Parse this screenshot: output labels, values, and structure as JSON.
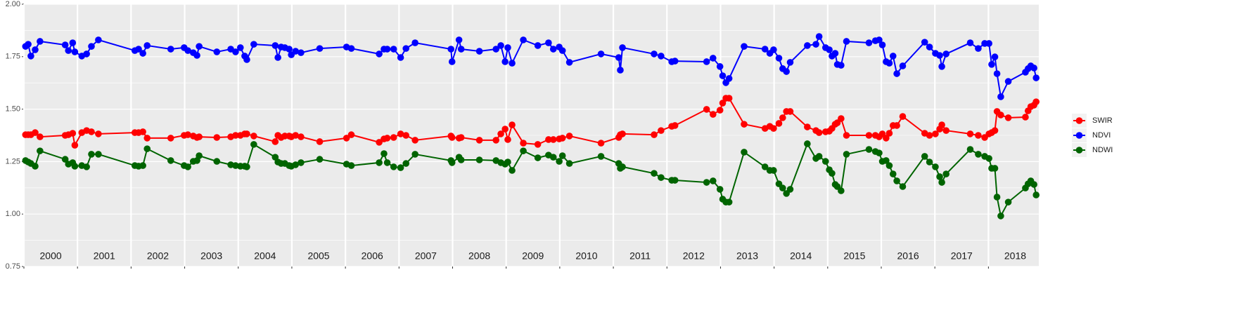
{
  "chart_data": {
    "type": "line",
    "x": [
      2000.03,
      2000.08,
      2000.13,
      2000.21,
      2000.3,
      2000.77,
      2000.83,
      2000.91,
      2000.95,
      2001.08,
      2001.17,
      2001.26,
      2001.39,
      2002.07,
      2002.14,
      2002.22,
      2002.3,
      2002.74,
      2002.99,
      2003.06,
      2003.16,
      2003.23,
      2003.27,
      2003.6,
      2003.86,
      2003.95,
      2004.04,
      2004.12,
      2004.16,
      2004.29,
      2004.69,
      2004.74,
      2004.8,
      2004.87,
      2004.95,
      2004.99,
      2005.07,
      2005.17,
      2005.52,
      2006.02,
      2006.11,
      2006.63,
      2006.72,
      2006.78,
      2006.9,
      2007.03,
      2007.13,
      2007.3,
      2007.97,
      2007.99,
      2008.12,
      2008.16,
      2008.5,
      2008.81,
      2008.9,
      2008.98,
      2009.03,
      2009.11,
      2009.32,
      2009.59,
      2009.79,
      2009.88,
      2009.99,
      2010.05,
      2010.18,
      2010.77,
      2011.1,
      2011.13,
      2011.17,
      2011.76,
      2011.89,
      2012.09,
      2012.15,
      2012.74,
      2012.86,
      2012.99,
      2013.04,
      2013.1,
      2013.16,
      2013.44,
      2013.83,
      2013.92,
      2013.99,
      2014.09,
      2014.16,
      2014.23,
      2014.3,
      2014.62,
      2014.78,
      2014.84,
      2014.96,
      2015.03,
      2015.08,
      2015.14,
      2015.18,
      2015.25,
      2015.35,
      2015.77,
      2015.89,
      2015.96,
      2016.02,
      2016.09,
      2016.15,
      2016.22,
      2016.29,
      2016.4,
      2016.81,
      2016.9,
      2017.01,
      2017.09,
      2017.13,
      2017.21,
      2017.66,
      2017.81,
      2017.93,
      2018.01,
      2018.06,
      2018.12,
      2018.16,
      2018.23,
      2018.37,
      2018.69,
      2018.74,
      2018.79,
      2018.85,
      2018.89
    ],
    "series": [
      {
        "name": "SWIR",
        "color": "#ff0000",
        "values": [
          1.378,
          1.378,
          1.378,
          1.388,
          1.368,
          1.375,
          1.378,
          1.385,
          1.328,
          1.388,
          1.398,
          1.392,
          1.382,
          1.388,
          1.388,
          1.392,
          1.362,
          1.362,
          1.375,
          1.378,
          1.372,
          1.365,
          1.368,
          1.365,
          1.368,
          1.375,
          1.375,
          1.382,
          1.382,
          1.372,
          1.345,
          1.375,
          1.365,
          1.372,
          1.372,
          1.368,
          1.375,
          1.368,
          1.345,
          1.362,
          1.378,
          1.342,
          1.358,
          1.362,
          1.365,
          1.382,
          1.375,
          1.352,
          1.372,
          1.365,
          1.362,
          1.365,
          1.352,
          1.352,
          1.382,
          1.405,
          1.355,
          1.425,
          1.338,
          1.332,
          1.355,
          1.355,
          1.358,
          1.362,
          1.372,
          1.338,
          1.365,
          1.378,
          1.382,
          1.378,
          1.398,
          1.418,
          1.422,
          1.499,
          1.475,
          1.495,
          1.529,
          1.552,
          1.552,
          1.428,
          1.408,
          1.418,
          1.408,
          1.432,
          1.459,
          1.489,
          1.489,
          1.415,
          1.398,
          1.388,
          1.392,
          1.395,
          1.408,
          1.428,
          1.435,
          1.455,
          1.375,
          1.375,
          1.375,
          1.368,
          1.382,
          1.362,
          1.385,
          1.422,
          1.422,
          1.465,
          1.385,
          1.375,
          1.382,
          1.405,
          1.425,
          1.398,
          1.382,
          1.375,
          1.365,
          1.382,
          1.388,
          1.398,
          1.489,
          1.472,
          1.459,
          1.462,
          1.492,
          1.512,
          1.519,
          1.535
        ]
      },
      {
        "name": "NDVI",
        "color": "#0000ff",
        "values": [
          1.799,
          1.809,
          1.753,
          1.783,
          1.823,
          1.806,
          1.779,
          1.816,
          1.773,
          1.753,
          1.763,
          1.799,
          1.83,
          1.779,
          1.786,
          1.766,
          1.803,
          1.786,
          1.793,
          1.779,
          1.769,
          1.756,
          1.799,
          1.773,
          1.786,
          1.773,
          1.793,
          1.753,
          1.736,
          1.809,
          1.803,
          1.746,
          1.796,
          1.793,
          1.786,
          1.759,
          1.776,
          1.769,
          1.789,
          1.796,
          1.789,
          1.763,
          1.786,
          1.786,
          1.786,
          1.746,
          1.789,
          1.816,
          1.786,
          1.726,
          1.83,
          1.786,
          1.776,
          1.786,
          1.803,
          1.726,
          1.793,
          1.719,
          1.83,
          1.803,
          1.816,
          1.786,
          1.796,
          1.779,
          1.723,
          1.763,
          1.746,
          1.686,
          1.793,
          1.763,
          1.753,
          1.726,
          1.729,
          1.726,
          1.743,
          1.703,
          1.659,
          1.626,
          1.646,
          1.799,
          1.786,
          1.766,
          1.783,
          1.743,
          1.693,
          1.679,
          1.723,
          1.803,
          1.809,
          1.846,
          1.793,
          1.783,
          1.753,
          1.766,
          1.713,
          1.709,
          1.823,
          1.816,
          1.826,
          1.83,
          1.806,
          1.726,
          1.719,
          1.753,
          1.669,
          1.706,
          1.819,
          1.796,
          1.766,
          1.756,
          1.703,
          1.763,
          1.816,
          1.789,
          1.813,
          1.813,
          1.713,
          1.749,
          1.669,
          1.559,
          1.632,
          1.676,
          1.693,
          1.706,
          1.696,
          1.649
        ]
      },
      {
        "name": "NDWI",
        "color": "#006400",
        "values": [
          1.255,
          1.248,
          1.241,
          1.228,
          1.301,
          1.261,
          1.238,
          1.245,
          1.228,
          1.231,
          1.225,
          1.285,
          1.285,
          1.231,
          1.228,
          1.231,
          1.311,
          1.255,
          1.231,
          1.225,
          1.251,
          1.255,
          1.278,
          1.251,
          1.235,
          1.231,
          1.228,
          1.228,
          1.225,
          1.332,
          1.271,
          1.248,
          1.241,
          1.241,
          1.231,
          1.228,
          1.235,
          1.245,
          1.261,
          1.238,
          1.231,
          1.245,
          1.288,
          1.245,
          1.225,
          1.221,
          1.241,
          1.285,
          1.255,
          1.245,
          1.271,
          1.258,
          1.258,
          1.255,
          1.245,
          1.238,
          1.248,
          1.208,
          1.301,
          1.268,
          1.281,
          1.271,
          1.251,
          1.278,
          1.241,
          1.275,
          1.241,
          1.218,
          1.225,
          1.194,
          1.174,
          1.161,
          1.161,
          1.151,
          1.158,
          1.118,
          1.071,
          1.057,
          1.057,
          1.295,
          1.225,
          1.208,
          1.208,
          1.144,
          1.124,
          1.098,
          1.118,
          1.335,
          1.265,
          1.275,
          1.251,
          1.211,
          1.194,
          1.141,
          1.131,
          1.111,
          1.285,
          1.308,
          1.298,
          1.291,
          1.251,
          1.255,
          1.231,
          1.191,
          1.158,
          1.131,
          1.275,
          1.248,
          1.225,
          1.178,
          1.151,
          1.191,
          1.308,
          1.285,
          1.275,
          1.265,
          1.218,
          1.218,
          1.081,
          0.991,
          1.057,
          1.124,
          1.144,
          1.158,
          1.141,
          1.091
        ]
      }
    ],
    "xlim": [
      2000,
      2018.94
    ],
    "xticks": [
      2000,
      2001,
      2002,
      2003,
      2004,
      2005,
      2006,
      2007,
      2008,
      2009,
      2010,
      2011,
      2012,
      2013,
      2014,
      2015,
      2016,
      2017,
      2018
    ],
    "ylim": [
      0.75,
      2.0
    ],
    "yticks": [
      {
        "value": 0.75,
        "label": "0.75"
      },
      {
        "value": 1.0,
        "label": "1.00"
      },
      {
        "value": 1.25,
        "label": "1.25"
      },
      {
        "value": 1.5,
        "label": "1.50"
      },
      {
        "value": 1.75,
        "label": "1.75"
      },
      {
        "value": 2.0,
        "label": "2.00"
      }
    ],
    "grid": true,
    "legend_position": "right"
  }
}
